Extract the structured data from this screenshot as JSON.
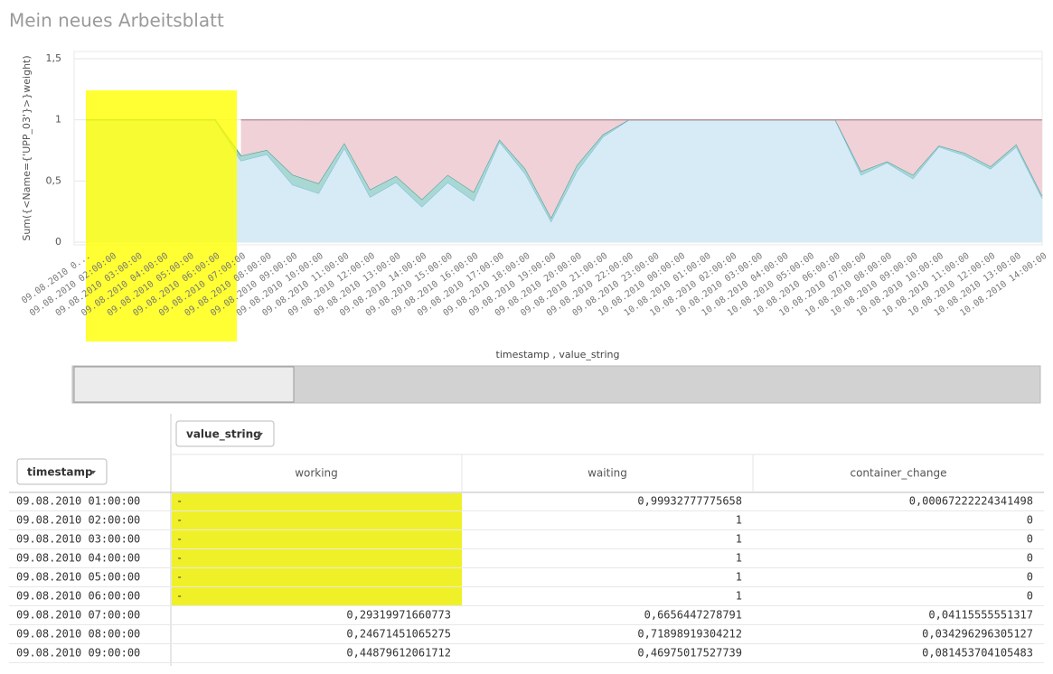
{
  "title": "Mein neues Arbeitsblatt",
  "chart_data": {
    "type": "area",
    "stacked": true,
    "y_label": "Sum({<Name={'UPP_03'}>}weight)",
    "x_label": "timestamp , value_string",
    "categories": [
      "09.08.2010 0...",
      "09.08.2010 02:00:00",
      "09.08.2010 03:00:00",
      "09.08.2010 04:00:00",
      "09.08.2010 05:00:00",
      "09.08.2010 06:00:00",
      "09.08.2010 07:00:00",
      "09.08.2010 08:00:00",
      "09.08.2010 09:00:00",
      "09.08.2010 10:00:00",
      "09.08.2010 11:00:00",
      "09.08.2010 12:00:00",
      "09.08.2010 13:00:00",
      "09.08.2010 14:00:00",
      "09.08.2010 15:00:00",
      "09.08.2010 16:00:00",
      "09.08.2010 17:00:00",
      "09.08.2010 18:00:00",
      "09.08.2010 19:00:00",
      "09.08.2010 20:00:00",
      "09.08.2010 21:00:00",
      "09.08.2010 22:00:00",
      "09.08.2010 23:00:00",
      "10.08.2010 00:00:00",
      "10.08.2010 01:00:00",
      "10.08.2010 02:00:00",
      "10.08.2010 03:00:00",
      "10.08.2010 04:00:00",
      "10.08.2010 05:00:00",
      "10.08.2010 06:00:00",
      "10.08.2010 07:00:00",
      "10.08.2010 08:00:00",
      "10.08.2010 09:00:00",
      "10.08.2010 10:00:00",
      "10.08.2010 11:00:00",
      "10.08.2010 12:00:00",
      "10.08.2010 13:00:00",
      "10.08.2010 14:00:00"
    ],
    "series": [
      {
        "name": "waiting",
        "color": "#d7ebf7",
        "line": "#86c3dc",
        "values": [
          0.9993,
          1,
          1,
          1,
          1,
          1,
          0.6656,
          0.719,
          0.4698,
          0.4,
          0.77,
          0.37,
          0.49,
          0.29,
          0.49,
          0.34,
          0.82,
          0.56,
          0.17,
          0.58,
          0.86,
          1,
          1,
          1,
          1,
          1,
          1,
          1,
          1,
          1,
          0.55,
          0.65,
          0.52,
          0.78,
          0.71,
          0.6,
          0.78,
          0.36
        ]
      },
      {
        "name": "container_change",
        "color": "#a9d8d3",
        "line": "#5ea6a1",
        "values": [
          0.00067,
          0,
          0,
          0,
          0,
          0,
          0.0412,
          0.0343,
          0.0815,
          0.08,
          0.04,
          0.06,
          0.05,
          0.06,
          0.06,
          0.07,
          0.02,
          0.04,
          0.03,
          0.05,
          0.02,
          0,
          0,
          0,
          0,
          0,
          0,
          0,
          0,
          0,
          0.03,
          0.01,
          0.03,
          0.01,
          0.02,
          0.02,
          0.02,
          0.02
        ]
      },
      {
        "name": "working",
        "color": "#f0d1d7",
        "line": "#b79098",
        "values": [
          null,
          null,
          null,
          null,
          null,
          null,
          0.2932,
          0.2467,
          0.4488,
          0.52,
          0.19,
          0.57,
          0.46,
          0.65,
          0.45,
          0.59,
          0.16,
          0.4,
          0.8,
          0.37,
          0.12,
          0,
          0,
          0,
          0,
          0,
          0,
          0,
          0,
          0,
          0.42,
          0.34,
          0.45,
          0.21,
          0.27,
          0.38,
          0.2,
          0.62
        ]
      }
    ],
    "ylim": [
      0,
      1.5
    ],
    "yticks": [
      0,
      {
        "value": 0.5,
        "label": "0,5"
      },
      1,
      {
        "value": 1.5,
        "label": "1,5"
      }
    ],
    "grid": true
  },
  "table": {
    "row_dimension": "timestamp",
    "column_dimension": "value_string",
    "columns": [
      "working",
      "waiting",
      "container_change"
    ],
    "rows": [
      [
        "09.08.2010 01:00:00",
        "-",
        "0,99932777775658",
        "0,00067222224341498"
      ],
      [
        "09.08.2010 02:00:00",
        "-",
        "1",
        "0"
      ],
      [
        "09.08.2010 03:00:00",
        "-",
        "1",
        "0"
      ],
      [
        "09.08.2010 04:00:00",
        "-",
        "1",
        "0"
      ],
      [
        "09.08.2010 05:00:00",
        "-",
        "1",
        "0"
      ],
      [
        "09.08.2010 06:00:00",
        "-",
        "1",
        "0"
      ],
      [
        "09.08.2010 07:00:00",
        "0,29319971660773",
        "0,6656447278791",
        "0,04115555551317"
      ],
      [
        "09.08.2010 08:00:00",
        "0,24671451065275",
        "0,71898919304212",
        "0,034296296305127"
      ],
      [
        "09.08.2010 09:00:00",
        "0,44879612061712",
        "0,46975017527739",
        "0,081453704105483"
      ]
    ]
  }
}
